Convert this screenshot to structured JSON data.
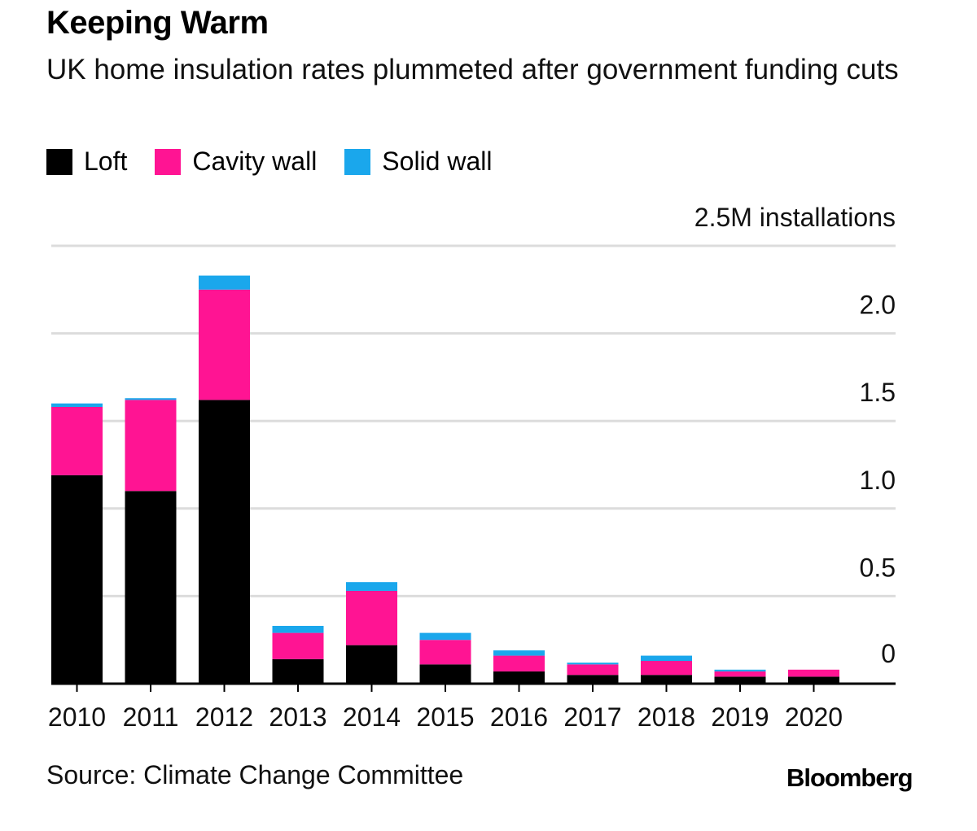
{
  "title": "Keeping Warm",
  "subtitle": "UK home insulation rates plummeted after government funding cuts",
  "source": "Source: Climate Change Committee",
  "brand": "Bloomberg",
  "colors": {
    "loft": "#000000",
    "cavity": "#ff1493",
    "solid": "#1aa7ec",
    "grid": "#dcdcdc"
  },
  "chart_data": {
    "type": "bar",
    "stacked": true,
    "unit_label": "2.5M installations",
    "categories": [
      "2010",
      "2011",
      "2012",
      "2013",
      "2014",
      "2015",
      "2016",
      "2017",
      "2018",
      "2019",
      "2020"
    ],
    "series": [
      {
        "name": "Loft",
        "color": "#000000",
        "values": [
          1.19,
          1.1,
          1.62,
          0.14,
          0.22,
          0.11,
          0.07,
          0.05,
          0.05,
          0.04,
          0.04
        ]
      },
      {
        "name": "Cavity wall",
        "color": "#ff1493",
        "values": [
          0.39,
          0.52,
          0.63,
          0.15,
          0.31,
          0.14,
          0.09,
          0.06,
          0.08,
          0.03,
          0.04
        ]
      },
      {
        "name": "Solid wall",
        "color": "#1aa7ec",
        "values": [
          0.02,
          0.01,
          0.08,
          0.04,
          0.05,
          0.04,
          0.03,
          0.01,
          0.03,
          0.01,
          0.0
        ]
      }
    ],
    "yticks": [
      {
        "value": 0,
        "label": "0"
      },
      {
        "value": 0.5,
        "label": "0.5"
      },
      {
        "value": 1.0,
        "label": "1.0"
      },
      {
        "value": 1.5,
        "label": "1.5"
      },
      {
        "value": 2.0,
        "label": "2.0"
      },
      {
        "value": 2.5,
        "label": "2.5M installations"
      }
    ],
    "ylim": [
      0,
      2.5
    ],
    "grid": true,
    "legend": "top-left"
  }
}
